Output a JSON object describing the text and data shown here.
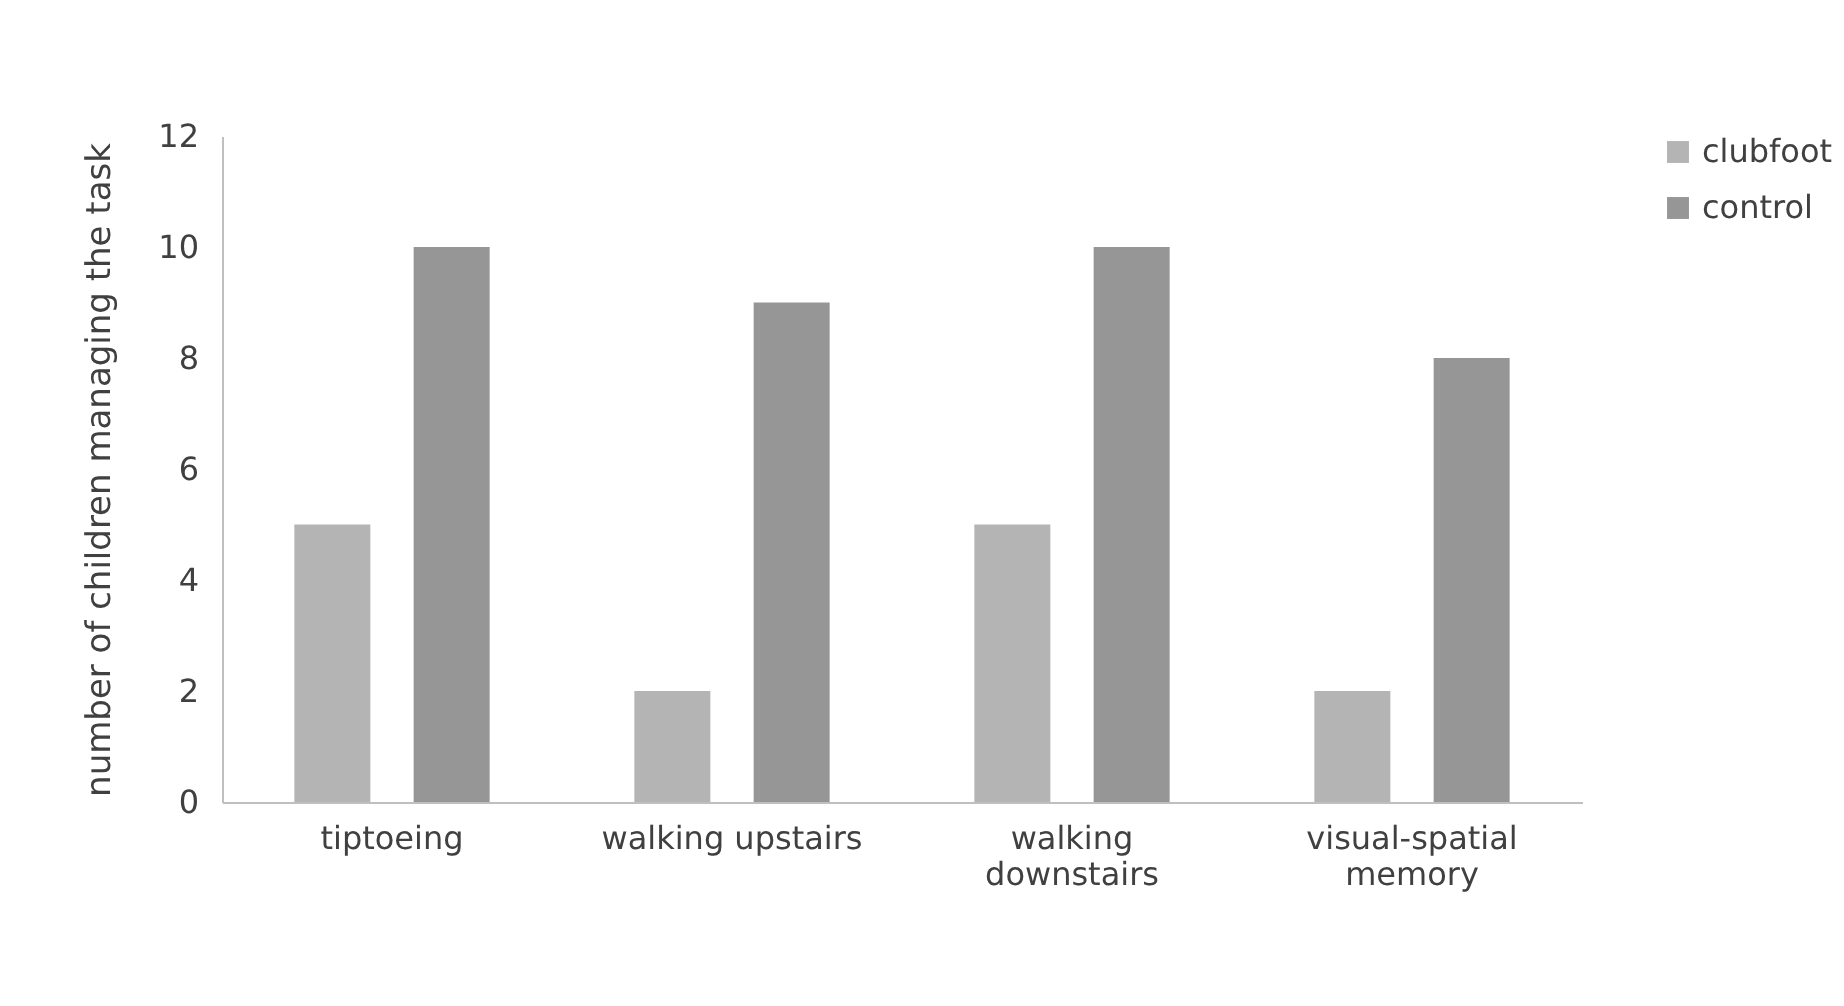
{
  "chart_data": {
    "type": "bar",
    "ylabel": "number of children managing the task",
    "categories": [
      "tiptoeing",
      "walking upstairs",
      "walking downstairs",
      "visual-spatial memory"
    ],
    "series": [
      {
        "name": "clubfoot",
        "color": "#b4b4b4",
        "values": [
          5,
          2,
          5,
          2
        ]
      },
      {
        "name": "control",
        "color": "#969696",
        "values": [
          10,
          9,
          10,
          8
        ]
      }
    ],
    "ylim": [
      0,
      12
    ],
    "yticks": [
      0,
      2,
      4,
      6,
      8,
      10,
      12
    ],
    "grid": false,
    "legend": "top right"
  }
}
